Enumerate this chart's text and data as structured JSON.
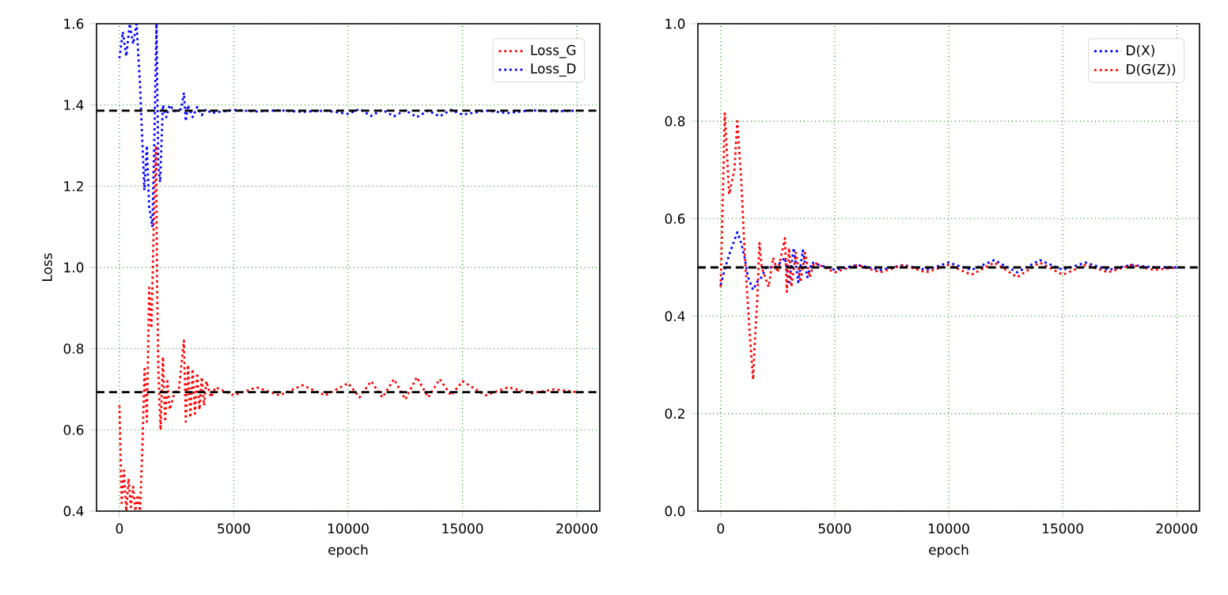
{
  "chart_data": [
    {
      "type": "line",
      "xlabel": "epoch",
      "ylabel": "Loss",
      "xlim": [
        -1000,
        21000
      ],
      "ylim": [
        0.4,
        1.6
      ],
      "xticks": [
        0,
        5000,
        10000,
        15000,
        20000
      ],
      "yticks": [
        {
          "value": 0.4,
          "label": "0.4"
        },
        {
          "value": 0.6,
          "label": "0.6"
        },
        {
          "value": 0.8,
          "label": "0.8"
        },
        {
          "value": 1.0,
          "label": "1.0"
        },
        {
          "value": 1.2,
          "label": "1.2"
        },
        {
          "value": 1.4,
          "label": "1.4"
        },
        {
          "value": 1.6,
          "label": "1.6"
        }
      ],
      "grid": true,
      "legend": "top right",
      "marker": "none",
      "line_style": "dotted",
      "ref_lines": [
        {
          "axis": "y",
          "value": 0.693,
          "color": "#000000",
          "line_style": "dashed"
        },
        {
          "axis": "y",
          "value": 1.386,
          "color": "#000000",
          "line_style": "dashed"
        }
      ],
      "series": [
        {
          "name": "Loss_G",
          "color": "#ff0000",
          "x": [
            0,
            100,
            200,
            300,
            400,
            500,
            600,
            700,
            800,
            900,
            1000,
            1100,
            1200,
            1300,
            1400,
            1500,
            1600,
            1650,
            1700,
            1800,
            1900,
            2000,
            2100,
            2200,
            2400,
            2600,
            2820,
            2900,
            3000,
            3100,
            3200,
            3300,
            3400,
            3500,
            3600,
            3700,
            3800,
            4000,
            4200,
            5000,
            6000,
            7000,
            8000,
            9000,
            10000,
            10500,
            11000,
            11500,
            12000,
            12500,
            13000,
            13500,
            14000,
            14500,
            15000,
            16000,
            17000,
            18000,
            19000,
            20000
          ],
          "values": [
            0.66,
            0.42,
            0.5,
            0.4,
            0.48,
            0.41,
            0.46,
            0.4,
            0.44,
            0.4,
            0.55,
            0.75,
            0.62,
            0.95,
            0.85,
            1.1,
            1.3,
            0.95,
            0.75,
            0.6,
            0.78,
            0.62,
            0.72,
            0.65,
            0.69,
            0.7,
            0.82,
            0.62,
            0.76,
            0.63,
            0.75,
            0.64,
            0.74,
            0.65,
            0.73,
            0.66,
            0.72,
            0.68,
            0.705,
            0.685,
            0.705,
            0.685,
            0.71,
            0.685,
            0.715,
            0.68,
            0.72,
            0.68,
            0.725,
            0.675,
            0.73,
            0.68,
            0.725,
            0.685,
            0.72,
            0.685,
            0.705,
            0.69,
            0.7,
            0.693
          ]
        },
        {
          "name": "Loss_D",
          "color": "#0000ff",
          "x": [
            0,
            150,
            300,
            450,
            600,
            750,
            900,
            1090,
            1200,
            1300,
            1440,
            1540,
            1620,
            1700,
            1780,
            1900,
            2050,
            2200,
            2400,
            2700,
            2820,
            2900,
            3000,
            3200,
            3400,
            3600,
            3800,
            4000,
            5000,
            6000,
            7000,
            8000,
            9000,
            10000,
            10500,
            11000,
            11500,
            12000,
            12500,
            13000,
            13500,
            14000,
            14500,
            15000,
            16000,
            17000,
            18000,
            19000,
            20000
          ],
          "values": [
            1.515,
            1.58,
            1.52,
            1.6,
            1.55,
            1.6,
            1.45,
            1.19,
            1.3,
            1.15,
            1.1,
            1.35,
            1.6,
            1.25,
            1.21,
            1.4,
            1.37,
            1.4,
            1.385,
            1.39,
            1.43,
            1.36,
            1.4,
            1.37,
            1.395,
            1.375,
            1.39,
            1.38,
            1.388,
            1.384,
            1.387,
            1.383,
            1.386,
            1.378,
            1.39,
            1.373,
            1.388,
            1.372,
            1.387,
            1.37,
            1.386,
            1.372,
            1.388,
            1.376,
            1.386,
            1.38,
            1.387,
            1.384,
            1.386
          ]
        }
      ]
    },
    {
      "type": "line",
      "xlabel": "epoch",
      "xlim": [
        -1000,
        21000
      ],
      "ylim": [
        0.0,
        1.0
      ],
      "xticks": [
        0,
        5000,
        10000,
        15000,
        20000
      ],
      "yticks": [
        {
          "value": 0.0,
          "label": "0.0"
        },
        {
          "value": 0.2,
          "label": "0.2"
        },
        {
          "value": 0.4,
          "label": "0.4"
        },
        {
          "value": 0.6,
          "label": "0.6"
        },
        {
          "value": 0.8,
          "label": "0.8"
        },
        {
          "value": 1.0,
          "label": "1.0"
        }
      ],
      "grid": true,
      "legend": "top right",
      "marker": "none",
      "line_style": "dotted",
      "ref_lines": [
        {
          "axis": "y",
          "value": 0.5,
          "color": "#000000",
          "line_style": "dashed"
        }
      ],
      "series": [
        {
          "name": "D(X)",
          "color": "#0000ff",
          "x": [
            0,
            200,
            400,
            730,
            900,
            1050,
            1200,
            1420,
            1600,
            1790,
            2000,
            2400,
            2820,
            3000,
            3200,
            3400,
            3600,
            3800,
            4000,
            5000,
            6000,
            7000,
            8000,
            9000,
            10000,
            11000,
            12000,
            13000,
            14000,
            15000,
            16000,
            17000,
            18000,
            19000,
            20000
          ],
          "values": [
            0.464,
            0.5,
            0.53,
            0.572,
            0.55,
            0.52,
            0.48,
            0.454,
            0.47,
            0.48,
            0.5,
            0.5,
            0.52,
            0.47,
            0.54,
            0.47,
            0.535,
            0.48,
            0.51,
            0.495,
            0.505,
            0.495,
            0.505,
            0.495,
            0.51,
            0.495,
            0.515,
            0.49,
            0.515,
            0.495,
            0.51,
            0.495,
            0.505,
            0.5,
            0.5
          ]
        },
        {
          "name": "D(G(Z))",
          "color": "#ff0000",
          "x": [
            0,
            180,
            370,
            600,
            730,
            900,
            1000,
            1090,
            1280,
            1420,
            1500,
            1600,
            1700,
            1800,
            2100,
            2300,
            2500,
            2820,
            2900,
            3000,
            3100,
            3300,
            3500,
            3700,
            3900,
            4100,
            5000,
            6000,
            7000,
            8000,
            9000,
            10000,
            11000,
            12000,
            13000,
            14000,
            15000,
            16000,
            17000,
            18000,
            19000,
            20000
          ],
          "values": [
            0.46,
            0.816,
            0.65,
            0.7,
            0.8,
            0.68,
            0.58,
            0.5,
            0.36,
            0.27,
            0.35,
            0.43,
            0.55,
            0.5,
            0.46,
            0.52,
            0.49,
            0.56,
            0.45,
            0.54,
            0.46,
            0.53,
            0.47,
            0.53,
            0.48,
            0.51,
            0.49,
            0.505,
            0.49,
            0.505,
            0.49,
            0.505,
            0.485,
            0.51,
            0.48,
            0.51,
            0.485,
            0.505,
            0.49,
            0.505,
            0.495,
            0.5
          ]
        }
      ]
    }
  ]
}
